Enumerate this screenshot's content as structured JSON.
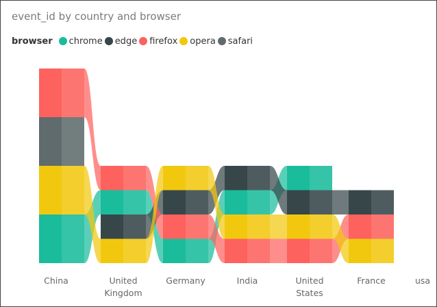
{
  "chart_data": {
    "type": "ribbon",
    "title": "event_id by country and browser",
    "legend": {
      "title": "browser",
      "position": "top-left",
      "items": [
        {
          "name": "chrome",
          "color": "#1abc9c"
        },
        {
          "name": "edge",
          "color": "#374649"
        },
        {
          "name": "firefox",
          "color": "#fd625e"
        },
        {
          "name": "opera",
          "color": "#f2c80f"
        },
        {
          "name": "safari",
          "color": "#5f6b6d"
        }
      ]
    },
    "categories": [
      {
        "label": "China",
        "lines": [
          "China"
        ]
      },
      {
        "label": "United Kingdom",
        "lines": [
          "United",
          "Kingdom"
        ]
      },
      {
        "label": "Germany",
        "lines": [
          "Germany"
        ]
      },
      {
        "label": "India",
        "lines": [
          "India"
        ]
      },
      {
        "label": "United States",
        "lines": [
          "United",
          "States"
        ]
      },
      {
        "label": "France",
        "lines": [
          "France"
        ]
      },
      {
        "label": "usa",
        "lines": [
          "usa"
        ]
      }
    ],
    "series": [
      {
        "name": "chrome",
        "values": [
          2,
          1,
          1,
          1,
          1,
          0,
          0
        ]
      },
      {
        "name": "edge",
        "values": [
          0,
          1,
          1,
          1,
          1,
          1,
          0
        ]
      },
      {
        "name": "firefox",
        "values": [
          2,
          1,
          1,
          1,
          1,
          1,
          0
        ]
      },
      {
        "name": "opera",
        "values": [
          2,
          1,
          1,
          1,
          1,
          1,
          0
        ]
      },
      {
        "name": "safari",
        "values": [
          2,
          0,
          0,
          0,
          0,
          0,
          0
        ]
      }
    ],
    "stack_order_bottom_to_top": [
      [
        "chrome",
        "opera",
        "safari",
        "firefox"
      ],
      [
        "opera",
        "edge",
        "chrome",
        "firefox"
      ],
      [
        "chrome",
        "firefox",
        "edge",
        "opera"
      ],
      [
        "firefox",
        "opera",
        "chrome",
        "edge"
      ],
      [
        "firefox",
        "opera",
        "edge",
        "chrome"
      ],
      [
        "opera",
        "firefox",
        "edge"
      ],
      []
    ],
    "grid": false
  }
}
